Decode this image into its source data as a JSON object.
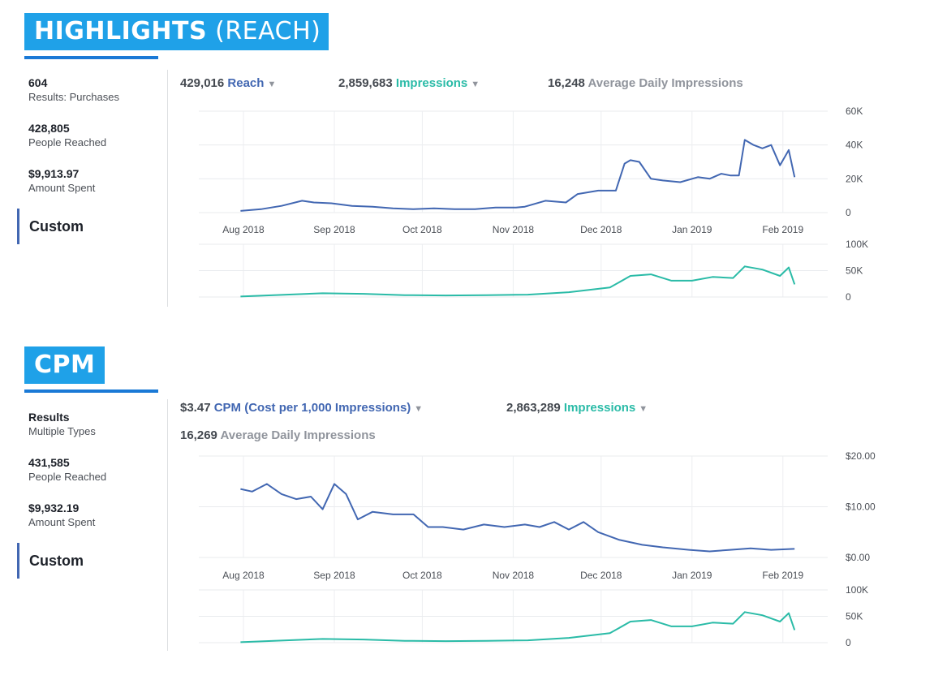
{
  "panels": [
    {
      "id": "reach",
      "banner": {
        "bold": "HIGHLIGHTS",
        "thin": " (REACH)"
      },
      "stats": [
        {
          "value": "604",
          "label": "Results: Purchases"
        },
        {
          "value": "428,805",
          "label": "People Reached"
        },
        {
          "value": "$9,913.97",
          "label": "Amount Spent"
        }
      ],
      "custom_label": "Custom",
      "metrics": [
        {
          "value": "429,016",
          "label": "Reach",
          "color": "#4267b2",
          "dropdown": true
        },
        {
          "value": "2,859,683",
          "label": "Impressions",
          "color": "#2abba7",
          "dropdown": true
        },
        {
          "value": "16,248",
          "label": "Average Daily Impressions",
          "color": "#90949c",
          "dropdown": false
        }
      ]
    },
    {
      "id": "cpm",
      "banner": {
        "bold": "CPM",
        "thin": ""
      },
      "stats": [
        {
          "value": "Results",
          "label": "Multiple Types"
        },
        {
          "value": "431,585",
          "label": "People Reached"
        },
        {
          "value": "$9,932.19",
          "label": "Amount Spent"
        }
      ],
      "custom_label": "Custom",
      "metrics": [
        {
          "value": "$3.47",
          "label": "CPM (Cost per 1,000 Impressions)",
          "color": "#4267b2",
          "dropdown": true
        },
        {
          "value": "2,863,289",
          "label": "Impressions",
          "color": "#2abba7",
          "dropdown": true
        },
        {
          "value": "16,269",
          "label": "Average Daily Impressions",
          "color": "#90949c",
          "dropdown": false
        }
      ]
    }
  ],
  "chart_data": [
    {
      "type": "line",
      "panel": "reach",
      "x_ticks": [
        "Aug 2018",
        "Sep 2018",
        "Oct 2018",
        "Nov 2018",
        "Dec 2018",
        "Jan 2019",
        "Feb 2019"
      ],
      "y_ticks": [
        "60K",
        "40K",
        "20K",
        "0"
      ],
      "ylim": [
        0,
        60000
      ],
      "series": [
        {
          "color": "#4267b2",
          "x": [
            "2018-07-31",
            "2018-08-07",
            "2018-08-14",
            "2018-08-21",
            "2018-08-25",
            "2018-08-31",
            "2018-09-07",
            "2018-09-14",
            "2018-09-21",
            "2018-09-28",
            "2018-10-05",
            "2018-10-12",
            "2018-10-19",
            "2018-10-26",
            "2018-11-02",
            "2018-11-05",
            "2018-11-12",
            "2018-11-19",
            "2018-11-23",
            "2018-11-30",
            "2018-12-06",
            "2018-12-09",
            "2018-12-11",
            "2018-12-14",
            "2018-12-18",
            "2018-12-22",
            "2018-12-28",
            "2019-01-03",
            "2019-01-07",
            "2019-01-11",
            "2019-01-14",
            "2019-01-17",
            "2019-01-19",
            "2019-01-22",
            "2019-01-25",
            "2019-01-28",
            "2019-01-31",
            "2019-02-03",
            "2019-02-05"
          ],
          "y": [
            1000,
            2000,
            4000,
            7000,
            6000,
            5500,
            4000,
            3500,
            2500,
            2000,
            2500,
            2000,
            2000,
            3000,
            3000,
            3500,
            7000,
            6000,
            11000,
            13000,
            13000,
            29000,
            31000,
            30000,
            20000,
            19000,
            18000,
            21000,
            20000,
            23000,
            22000,
            22000,
            43000,
            40000,
            38000,
            40000,
            28000,
            37000,
            21000
          ]
        },
        {
          "color": "#2abba7",
          "x": [
            "2018-07-31",
            "2018-08-14",
            "2018-08-28",
            "2018-09-11",
            "2018-09-25",
            "2018-10-09",
            "2018-10-23",
            "2018-11-06",
            "2018-11-20",
            "2018-12-04",
            "2018-12-11",
            "2018-12-18",
            "2018-12-25",
            "2019-01-01",
            "2019-01-08",
            "2019-01-15",
            "2019-01-19",
            "2019-01-25",
            "2019-01-31",
            "2019-02-03",
            "2019-02-05"
          ],
          "y": [
            1000,
            4000,
            7000,
            6000,
            3500,
            3000,
            3500,
            4500,
            9000,
            18000,
            40000,
            43000,
            31000,
            31000,
            38000,
            36000,
            58000,
            52000,
            40000,
            56000,
            24000
          ]
        }
      ]
    },
    {
      "type": "line",
      "panel": "cpm",
      "x_ticks": [
        "Aug 2018",
        "Sep 2018",
        "Oct 2018",
        "Nov 2018",
        "Dec 2018",
        "Jan 2019",
        "Feb 2019"
      ],
      "y_ticks": [
        "$20.00",
        "$10.00",
        "$0.00"
      ],
      "ylim": [
        0,
        20
      ],
      "series": [
        {
          "color": "#4267b2",
          "x": [
            "2018-07-31",
            "2018-08-04",
            "2018-08-09",
            "2018-08-14",
            "2018-08-19",
            "2018-08-24",
            "2018-08-28",
            "2018-09-01",
            "2018-09-05",
            "2018-09-09",
            "2018-09-14",
            "2018-09-21",
            "2018-09-28",
            "2018-10-03",
            "2018-10-08",
            "2018-10-15",
            "2018-10-22",
            "2018-10-29",
            "2018-11-05",
            "2018-11-10",
            "2018-11-15",
            "2018-11-20",
            "2018-11-25",
            "2018-11-30",
            "2018-12-07",
            "2018-12-15",
            "2018-12-22",
            "2018-12-31",
            "2019-01-07",
            "2019-01-14",
            "2019-01-21",
            "2019-01-28",
            "2019-02-05"
          ],
          "y": [
            13.5,
            13.0,
            14.5,
            12.5,
            11.5,
            12.0,
            9.5,
            14.5,
            12.5,
            7.5,
            9.0,
            8.5,
            8.5,
            6.0,
            6.0,
            5.5,
            6.5,
            6.0,
            6.5,
            6.0,
            7.0,
            5.5,
            7.0,
            5.0,
            3.5,
            2.5,
            2.0,
            1.5,
            1.2,
            1.5,
            1.8,
            1.5,
            1.7
          ]
        },
        {
          "color": "#2abba7",
          "x": [
            "2018-07-31",
            "2018-08-14",
            "2018-08-28",
            "2018-09-11",
            "2018-09-25",
            "2018-10-09",
            "2018-10-23",
            "2018-11-06",
            "2018-11-20",
            "2018-12-04",
            "2018-12-11",
            "2018-12-18",
            "2018-12-25",
            "2019-01-01",
            "2019-01-08",
            "2019-01-15",
            "2019-01-19",
            "2019-01-25",
            "2019-01-31",
            "2019-02-03",
            "2019-02-05"
          ],
          "y": [
            1000,
            4000,
            7000,
            6000,
            3500,
            3000,
            3500,
            4500,
            9000,
            18000,
            40000,
            43000,
            31000,
            31000,
            38000,
            36000,
            58000,
            52000,
            40000,
            56000,
            24000
          ]
        }
      ]
    }
  ],
  "mini_chart_y_ticks": [
    "100K",
    "50K",
    "0"
  ],
  "mini_chart_ylim": [
    0,
    100000
  ]
}
